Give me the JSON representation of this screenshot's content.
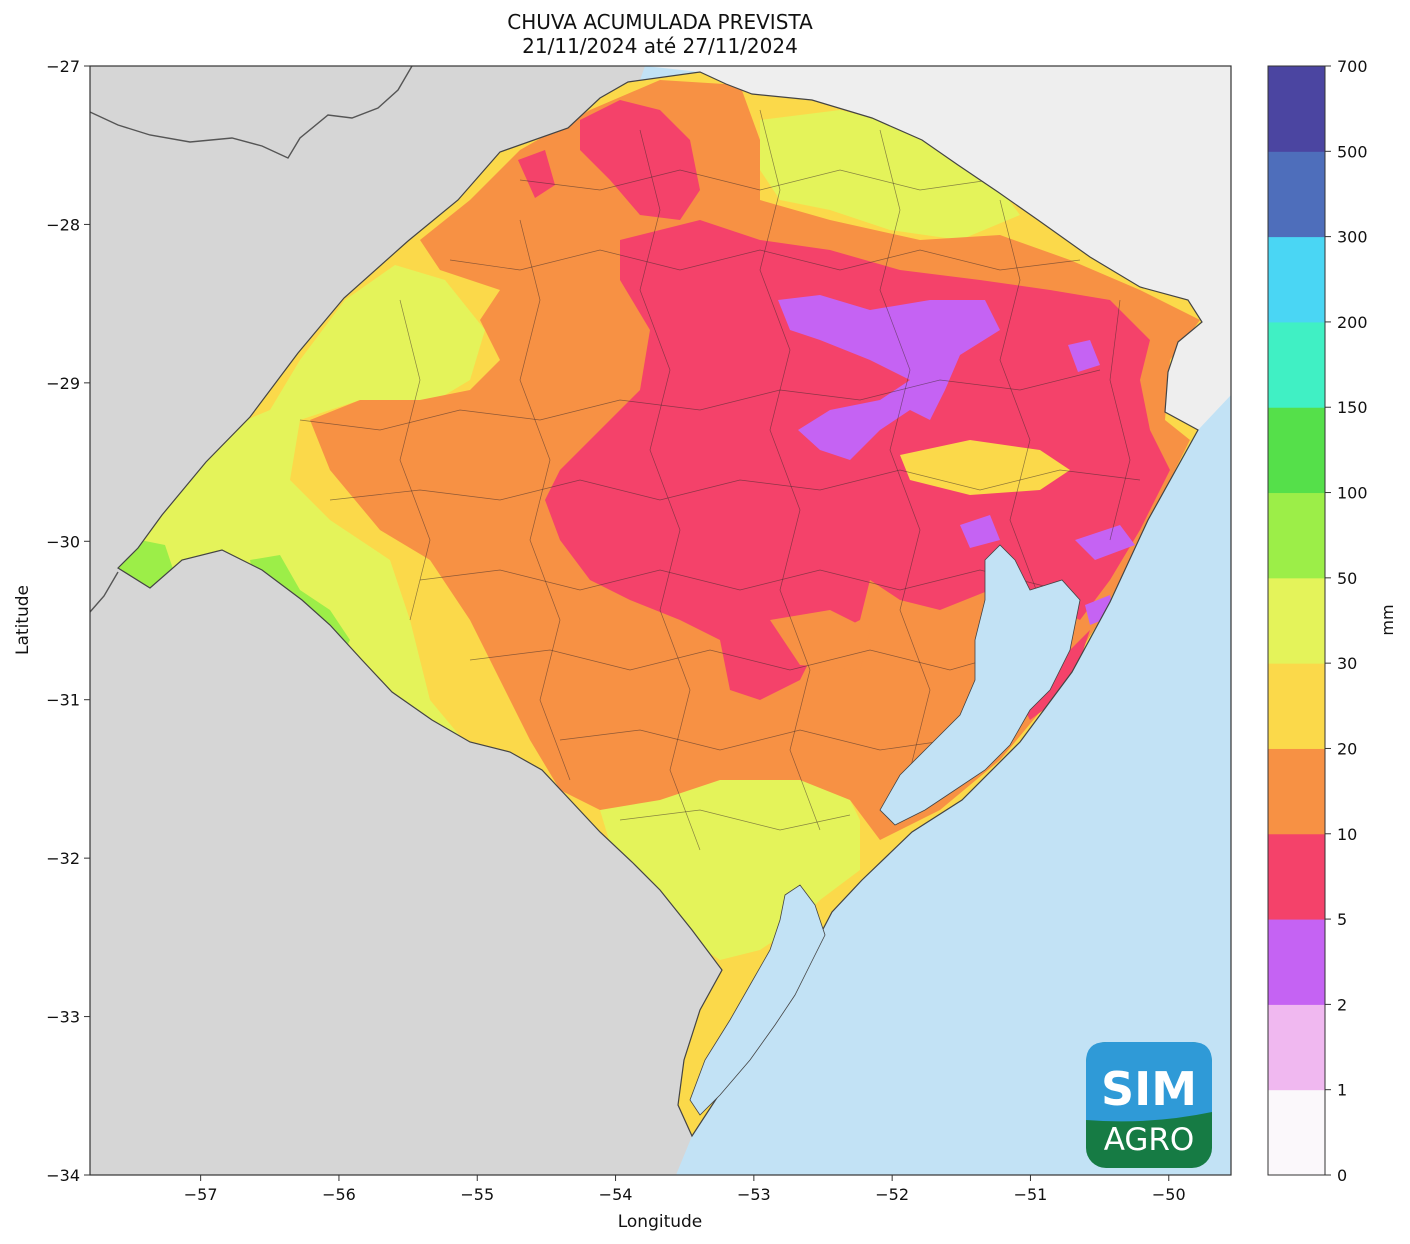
{
  "title": {
    "line1": "CHUVA ACUMULADA PREVISTA",
    "line2": "21/11/2024 até 27/11/2024"
  },
  "axes": {
    "xlabel": "Longitude",
    "ylabel": "Latitude",
    "xlim": [
      -57.8,
      -49.55
    ],
    "ylim": [
      -34,
      -27
    ],
    "xticks": [
      -57,
      -56,
      -55,
      -54,
      -53,
      -52,
      -51,
      -50
    ],
    "xtick_labels": [
      "−57",
      "−56",
      "−55",
      "−54",
      "−53",
      "−52",
      "−51",
      "−50"
    ],
    "yticks": [
      -27,
      -28,
      -29,
      -30,
      -31,
      -32,
      -33,
      -34
    ],
    "ytick_labels": [
      "−27",
      "−28",
      "−29",
      "−30",
      "−31",
      "−32",
      "−33",
      "−34"
    ]
  },
  "colorbar": {
    "unit_label": "mm",
    "tick_labels": [
      "0",
      "1",
      "2",
      "5",
      "10",
      "20",
      "30",
      "50",
      "100",
      "150",
      "200",
      "300",
      "500",
      "700"
    ],
    "colors": [
      "#fbf8fb",
      "#f0b8f0",
      "#c563f3",
      "#f4426a",
      "#f79144",
      "#fbd94a",
      "#e4f35a",
      "#9cee48",
      "#55e04a",
      "#40f0c4",
      "#4ad6f4",
      "#4e6ebb",
      "#4b45a1"
    ]
  },
  "map": {
    "ocean_color": "#c2e2f5",
    "land_outside_color": "#d6d6d6",
    "border_color": "#444444"
  },
  "logo": {
    "line1": "SIM",
    "line2": "AGRO"
  }
}
